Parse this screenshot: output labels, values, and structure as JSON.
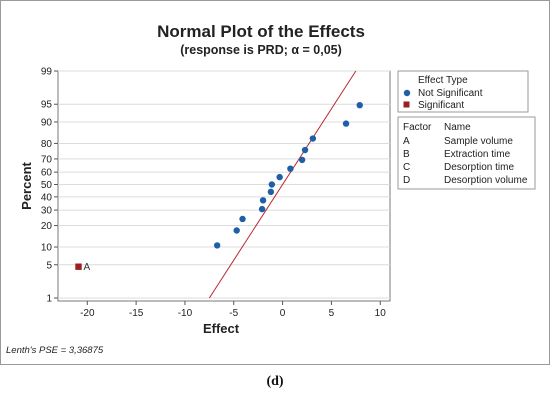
{
  "chart_data": {
    "type": "scatter",
    "title": "Normal Plot of the Effects",
    "subtitle": "(response is PRD; α = 0,05)",
    "xlabel": "Effect",
    "ylabel": "Percent",
    "xlim": [
      -23,
      11
    ],
    "x_ticks": [
      -20,
      -15,
      -10,
      -5,
      0,
      5,
      10
    ],
    "y_ticks": [
      1,
      5,
      10,
      20,
      30,
      40,
      50,
      60,
      70,
      80,
      90,
      95,
      99
    ],
    "y_scale": "normal-probability",
    "legend_position": "right",
    "reference_line": {
      "points": [
        [
          -7.5,
          1
        ],
        [
          7.5,
          99
        ]
      ],
      "color": "#b8282f"
    },
    "series": [
      {
        "name": "Not Significant",
        "color": "#1f5fa8",
        "marker": "circle",
        "points": [
          [
            -6.7,
            10.6
          ],
          [
            -4.7,
            17.3
          ],
          [
            -4.1,
            24.0
          ],
          [
            -2.1,
            30.7
          ],
          [
            -2.0,
            37.3
          ],
          [
            -1.2,
            44.0
          ],
          [
            -1.1,
            50.0
          ],
          [
            -0.3,
            56.0
          ],
          [
            0.8,
            62.7
          ],
          [
            2.0,
            69.3
          ],
          [
            2.3,
            76.0
          ],
          [
            3.1,
            82.7
          ],
          [
            6.5,
            89.4
          ],
          [
            7.9,
            94.8
          ]
        ]
      },
      {
        "name": "Significant",
        "color": "#9c1f24",
        "marker": "square",
        "points": [
          [
            -20.9,
            4.6
          ]
        ],
        "labels": [
          "A"
        ]
      }
    ],
    "legend": {
      "title": "Effect Type",
      "items": [
        "Not Significant",
        "Significant"
      ]
    },
    "factor_table": {
      "headers": [
        "Factor",
        "Name"
      ],
      "rows": [
        [
          "A",
          "Sample volume"
        ],
        [
          "B",
          "Extraction time"
        ],
        [
          "C",
          "Desorption time"
        ],
        [
          "D",
          "Desorption volume"
        ]
      ]
    },
    "footnote": "Lenth's PSE = 3,36875"
  },
  "caption": "(d)"
}
